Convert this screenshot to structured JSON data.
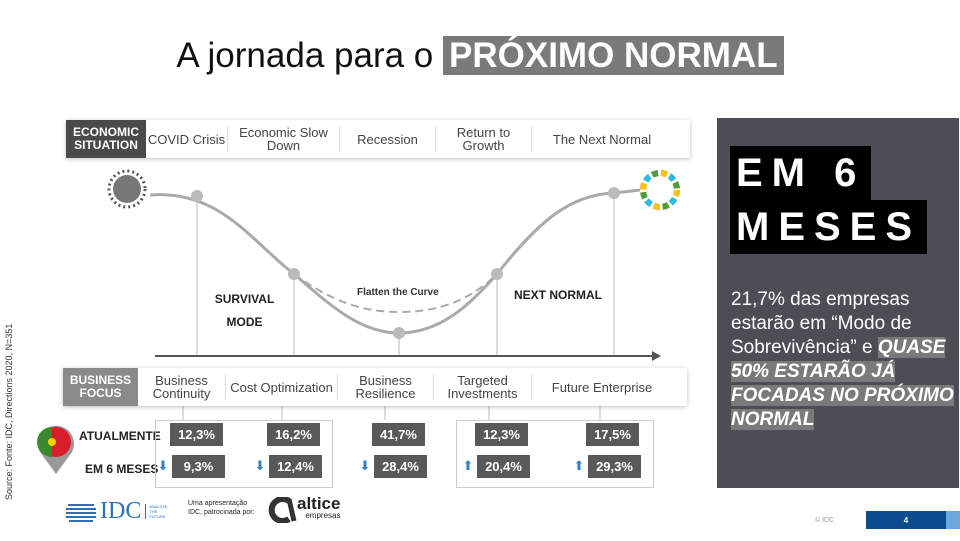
{
  "title": {
    "prefix": "A jornada para o",
    "highlight": "PRÓXIMO NORMAL"
  },
  "economic": {
    "label": "ECONOMIC SITUATION",
    "items": [
      "COVID Crisis",
      "Economic Slow Down",
      "Recession",
      "Return to Growth",
      "The Next Normal"
    ]
  },
  "curve": {
    "survival": "SURVIVAL MODE",
    "flatten": "Flatten the Curve",
    "next": "NEXT NORMAL"
  },
  "business": {
    "label": "BUSINESS FOCUS",
    "items": [
      "Business Continuity",
      "Cost Optimization",
      "Business Resilience",
      "Targeted Investments",
      "Future Enterprise"
    ]
  },
  "rows": {
    "now_label": "ATUALMENTE",
    "future_label": "EM 6 MESES",
    "now": [
      "12,3%",
      "16,2%",
      "41,7%",
      "12,3%",
      "17,5%"
    ],
    "future": [
      "9,3%",
      "12,4%",
      "28,4%",
      "20,4%",
      "29,3%"
    ],
    "trend": [
      "down",
      "down",
      "down",
      "up",
      "up"
    ]
  },
  "source": "Source: Fonte: IDC, Directions 2020, N=351",
  "footer": {
    "idc": "IDC",
    "idc_tag": "ANALYZE THE FUTURE",
    "sponsor": "Uma apresentação IDC, patrocinada por:",
    "altice": "altice",
    "altice_sub": "empresas",
    "copyright": "© IDC",
    "page": "4"
  },
  "side": {
    "heading1": "EM 6",
    "heading2": "MESES",
    "text": "21,7% das empresas estarão em “Modo de Sobrevivência” e",
    "highlight": "QUASE 50% ESTARÃO JÁ FOCADAS NO PRÓXIMO NORMAL"
  },
  "colors": {
    "accent_blue": "#2f7fc8",
    "dark_panel": "#4d4d55",
    "page_blue": "#0b4d8c"
  }
}
